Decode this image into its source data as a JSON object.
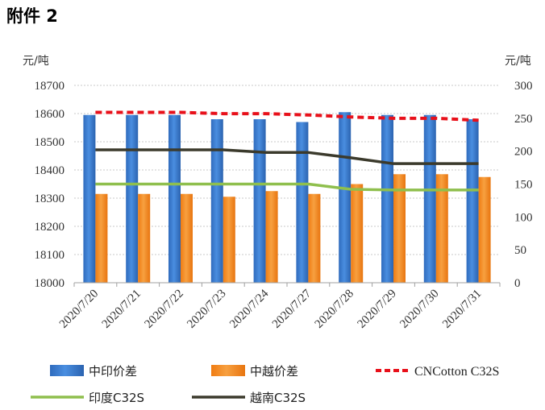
{
  "heading": "附件 2",
  "chart_data": {
    "type": "bar",
    "categories": [
      "2020/7/20",
      "2020/7/21",
      "2020/7/22",
      "2020/7/23",
      "2020/7/24",
      "2020/7/27",
      "2020/7/28",
      "2020/7/29",
      "2020/7/30",
      "2020/7/31"
    ],
    "left_axis": {
      "unit": "元/吨",
      "ylim": [
        18000,
        18700
      ],
      "ticks": [
        18000,
        18100,
        18200,
        18300,
        18400,
        18500,
        18600,
        18700
      ]
    },
    "right_axis": {
      "unit": "元/吨",
      "ylim": [
        0,
        300
      ],
      "ticks": [
        0,
        50,
        100,
        150,
        200,
        250,
        300
      ]
    },
    "grid": true,
    "legend_position": "bottom",
    "series": [
      {
        "name": "中印价差",
        "type": "bar",
        "axis": "left",
        "color": "#3a7bd0",
        "values": [
          18595,
          18595,
          18595,
          18580,
          18580,
          18570,
          18605,
          18595,
          18595,
          18580
        ]
      },
      {
        "name": "中越价差",
        "type": "bar",
        "axis": "left",
        "color": "#f28a1e",
        "values": [
          18315,
          18315,
          18315,
          18305,
          18325,
          18315,
          18350,
          18385,
          18385,
          18375
        ]
      },
      {
        "name": "CNCotton C32S",
        "type": "line",
        "style": "dashed",
        "axis": "right",
        "color": "#e8101a",
        "values": [
          259,
          259,
          259,
          257,
          257,
          255,
          252,
          250,
          250,
          247
        ]
      },
      {
        "name": "印度C32S",
        "type": "line",
        "axis": "right",
        "color": "#8fbf4d",
        "values": [
          150,
          150,
          150,
          150,
          150,
          150,
          142,
          141,
          141,
          141
        ]
      },
      {
        "name": "越南C32S",
        "type": "line",
        "axis": "right",
        "color": "#3b3a2c",
        "values": [
          202,
          202,
          202,
          202,
          198,
          198,
          190,
          181,
          181,
          181
        ]
      }
    ]
  }
}
